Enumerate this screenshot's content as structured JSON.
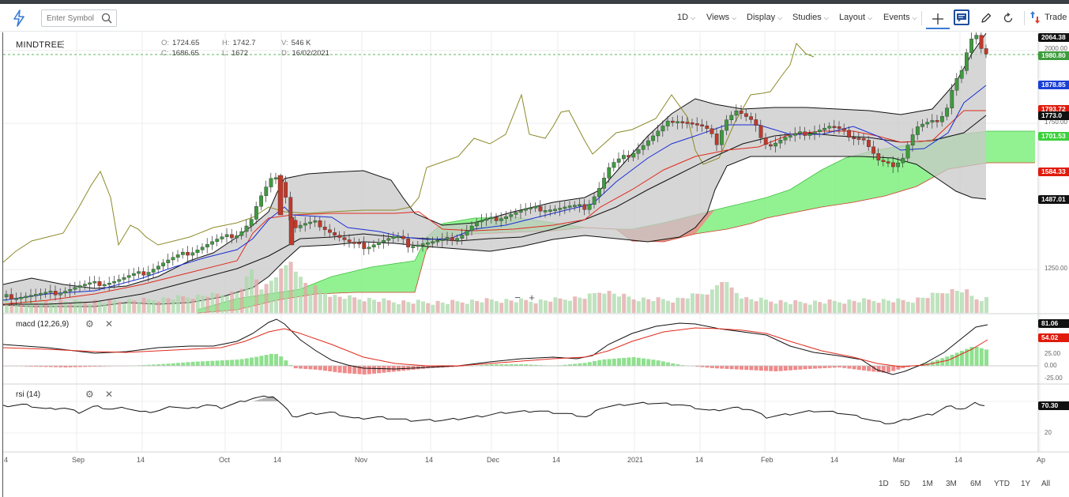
{
  "toolbar": {
    "search_placeholder": "Enter Symbol",
    "interval": "1D",
    "views": "Views",
    "display": "Display",
    "studies": "Studies",
    "layout": "Layout",
    "events": "Events",
    "trade": "Trade"
  },
  "symbol": {
    "name": "MINDTREE",
    "open_label": "O:",
    "open": "1724.65",
    "high_label": "H:",
    "high": "1742.7",
    "volume_label": "V:",
    "volume": "546 K",
    "close_label": "C:",
    "close": "1686.65",
    "low_label": "L:",
    "low": "1672",
    "date_label": "D:",
    "date": "16/02/2021"
  },
  "price_axis": {
    "ticks": [
      "2000.00",
      "1750.00",
      "1250.00"
    ],
    "labels": [
      {
        "text": "2064.38",
        "bg": "#111111",
        "fg": "#ffffff"
      },
      {
        "text": "1980.80",
        "bg": "#3c9c3c",
        "fg": "#ffffff"
      },
      {
        "text": "1878.85",
        "bg": "#1a3fd6",
        "fg": "#ffffff"
      },
      {
        "text": "1793.72",
        "bg": "#e01b0c",
        "fg": "#ffffff"
      },
      {
        "text": "1773.0",
        "bg": "#111111",
        "fg": "#ffffff"
      },
      {
        "text": "1701.53",
        "bg": "#3bd13b",
        "fg": "#ffffff"
      },
      {
        "text": "1584.33",
        "bg": "#e01b0c",
        "fg": "#ffffff"
      },
      {
        "text": "1487.01",
        "bg": "#111111",
        "fg": "#ffffff"
      }
    ]
  },
  "macd": {
    "title": "macd (12,26,9)",
    "ticks": [
      "25.00",
      "0.00",
      "-25.00"
    ],
    "labels": [
      {
        "text": "81.06",
        "bg": "#111111",
        "fg": "#ffffff"
      },
      {
        "text": "54.02",
        "bg": "#e01b0c",
        "fg": "#ffffff"
      }
    ]
  },
  "rsi": {
    "title": "rsi (14)",
    "ticks": [
      "20"
    ],
    "labels": [
      {
        "text": "70.30",
        "bg": "#111111",
        "fg": "#ffffff"
      }
    ]
  },
  "x_axis": [
    "4",
    "Sep",
    "14",
    "Oct",
    "14",
    "Nov",
    "14",
    "Dec",
    "14",
    "2021",
    "14",
    "Feb",
    "14",
    "Mar",
    "14",
    "Ap"
  ],
  "zoom": {
    "minus": "−",
    "plus": "+"
  },
  "ranges": [
    "1D",
    "5D",
    "1M",
    "3M",
    "6M",
    "YTD",
    "1Y",
    "All"
  ],
  "colors": {
    "up": "#3f9a3f",
    "down": "#c0392b",
    "bollinger_fill": "#c8c8c8",
    "cloud_green": "#7ff07f",
    "cloud_red": "#f08a8a",
    "lagging_span": "#8c8a2a"
  },
  "icons": [
    "lightning-icon",
    "search-icon",
    "crosshair-icon",
    "notes-icon",
    "pencil-icon",
    "refresh-icon",
    "trade-arrows-icon",
    "gear-icon",
    "close-icon"
  ]
}
